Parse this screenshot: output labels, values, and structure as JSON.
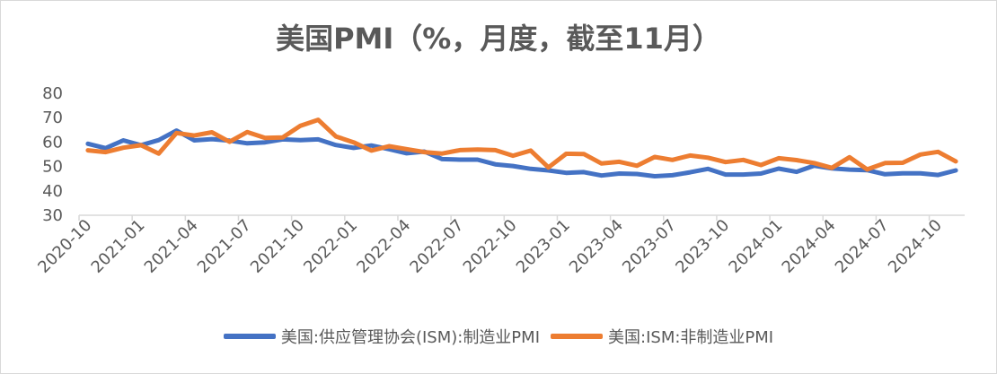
{
  "chart_data": {
    "type": "line",
    "title": "美国PMI（%，月度，截至11月）",
    "x": [
      "2020-10",
      "2020-11",
      "2020-12",
      "2021-01",
      "2021-02",
      "2021-03",
      "2021-04",
      "2021-05",
      "2021-06",
      "2021-07",
      "2021-08",
      "2021-09",
      "2021-10",
      "2021-11",
      "2021-12",
      "2022-01",
      "2022-02",
      "2022-03",
      "2022-04",
      "2022-05",
      "2022-06",
      "2022-07",
      "2022-08",
      "2022-09",
      "2022-10",
      "2022-11",
      "2022-12",
      "2023-01",
      "2023-02",
      "2023-03",
      "2023-04",
      "2023-05",
      "2023-06",
      "2023-07",
      "2023-08",
      "2023-09",
      "2023-10",
      "2023-11",
      "2023-12",
      "2024-01",
      "2024-02",
      "2024-03",
      "2024-04",
      "2024-05",
      "2024-06",
      "2024-07",
      "2024-08",
      "2024-09",
      "2024-10",
      "2024-11"
    ],
    "x_tick_labels": [
      "2020-10",
      "2021-01",
      "2021-04",
      "2021-07",
      "2021-10",
      "2022-01",
      "2022-04",
      "2022-07",
      "2022-10",
      "2023-01",
      "2023-04",
      "2023-07",
      "2023-10",
      "2024-01",
      "2024-04",
      "2024-07",
      "2024-10"
    ],
    "y_tick_labels": [
      "30",
      "40",
      "50",
      "60",
      "70",
      "80"
    ],
    "ylim": [
      30,
      80
    ],
    "grid": false,
    "legend_position": "bottom",
    "series": [
      {
        "name": "美国:供应管理协会(ISM):制造业PMI",
        "color": "#4472c4",
        "values": [
          59.3,
          57.5,
          60.7,
          58.7,
          60.8,
          64.7,
          60.7,
          61.2,
          60.6,
          59.5,
          59.9,
          61.1,
          60.8,
          61.1,
          58.8,
          57.6,
          58.6,
          57.1,
          55.4,
          56.1,
          53.0,
          52.8,
          52.8,
          50.9,
          50.2,
          49.0,
          48.4,
          47.4,
          47.7,
          46.3,
          47.1,
          46.9,
          46.0,
          46.4,
          47.6,
          49.0,
          46.7,
          46.7,
          47.1,
          49.1,
          47.8,
          50.3,
          49.2,
          48.7,
          48.5,
          46.8,
          47.2,
          47.2,
          46.5,
          48.4
        ]
      },
      {
        "name": "美国:ISM:非制造业PMI",
        "color": "#ed7d31",
        "values": [
          56.6,
          55.9,
          57.7,
          58.7,
          55.3,
          63.7,
          62.7,
          64.0,
          60.1,
          64.1,
          61.7,
          61.9,
          66.7,
          69.1,
          62.3,
          59.9,
          56.5,
          58.3,
          57.1,
          55.9,
          55.3,
          56.7,
          56.9,
          56.7,
          54.4,
          56.5,
          49.6,
          55.2,
          55.1,
          51.2,
          51.9,
          50.3,
          53.9,
          52.7,
          54.5,
          53.6,
          51.8,
          52.7,
          50.6,
          53.4,
          52.6,
          51.4,
          49.4,
          53.8,
          48.8,
          51.4,
          51.5,
          54.9,
          56.0,
          52.1
        ]
      }
    ]
  }
}
